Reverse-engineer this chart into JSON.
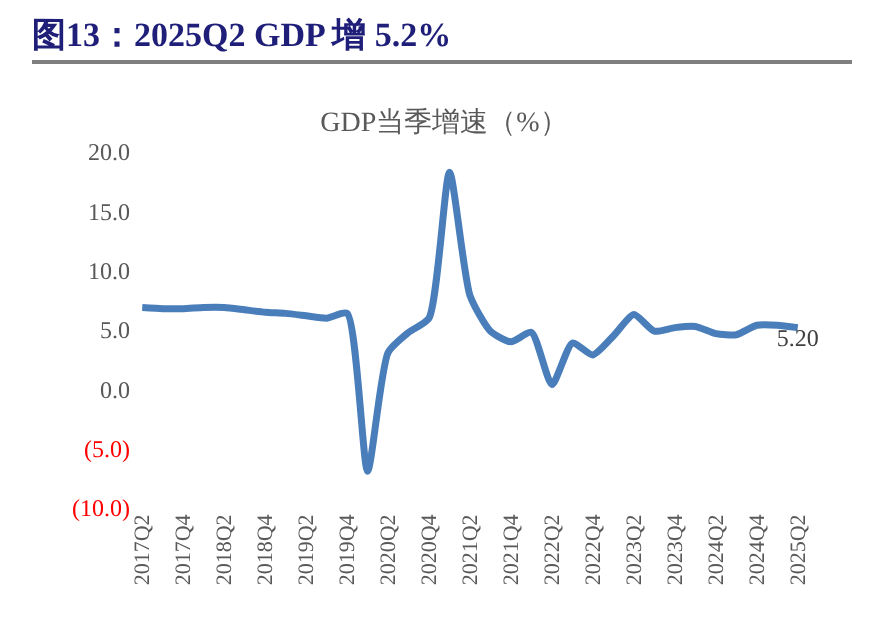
{
  "chart_data": {
    "type": "line",
    "title": "图13：2025Q2 GDP 增 5.2%",
    "subtitle": "GDP当季增速（%）",
    "categories": [
      "2017Q2",
      null,
      "2017Q4",
      null,
      "2018Q2",
      null,
      "2018Q4",
      null,
      "2019Q2",
      null,
      "2019Q4",
      null,
      "2020Q2",
      null,
      "2020Q4",
      null,
      "2021Q2",
      null,
      "2021Q4",
      null,
      "2022Q2",
      null,
      "2022Q4",
      null,
      "2023Q2",
      null,
      "2023Q4",
      null,
      "2024Q2",
      null,
      "2024Q4",
      null,
      "2025Q2"
    ],
    "series": [
      {
        "color": "#4a7ebb",
        "values": [
          6.9,
          6.8,
          6.8,
          6.9,
          6.9,
          6.7,
          6.5,
          6.4,
          6.2,
          6.0,
          6.4,
          -6.9,
          3.1,
          4.8,
          6.0,
          18.3,
          7.9,
          4.9,
          4.0,
          4.8,
          0.4,
          3.9,
          2.9,
          4.5,
          6.3,
          4.9,
          5.2,
          5.3,
          4.7,
          4.6,
          5.4,
          5.4,
          5.2
        ],
        "value_labels": [
          null,
          null,
          null,
          null,
          null,
          null,
          null,
          null,
          null,
          null,
          null,
          null,
          null,
          null,
          null,
          null,
          null,
          null,
          null,
          null,
          null,
          null,
          null,
          null,
          null,
          null,
          null,
          null,
          null,
          null,
          null,
          null,
          "5.20"
        ]
      }
    ],
    "ylim": [
      -10,
      20
    ],
    "yticks": [
      {
        "value": -10,
        "label": "(10.0)"
      },
      {
        "value": -5,
        "label": "(5.0)"
      },
      {
        "value": 0,
        "label": "0.0"
      },
      {
        "value": 5,
        "label": "5.0"
      },
      {
        "value": 10,
        "label": "10.0"
      },
      {
        "value": 15,
        "label": "15.0"
      },
      {
        "value": 20,
        "label": "20.0"
      }
    ],
    "marker": "none",
    "line_style": "solid"
  }
}
